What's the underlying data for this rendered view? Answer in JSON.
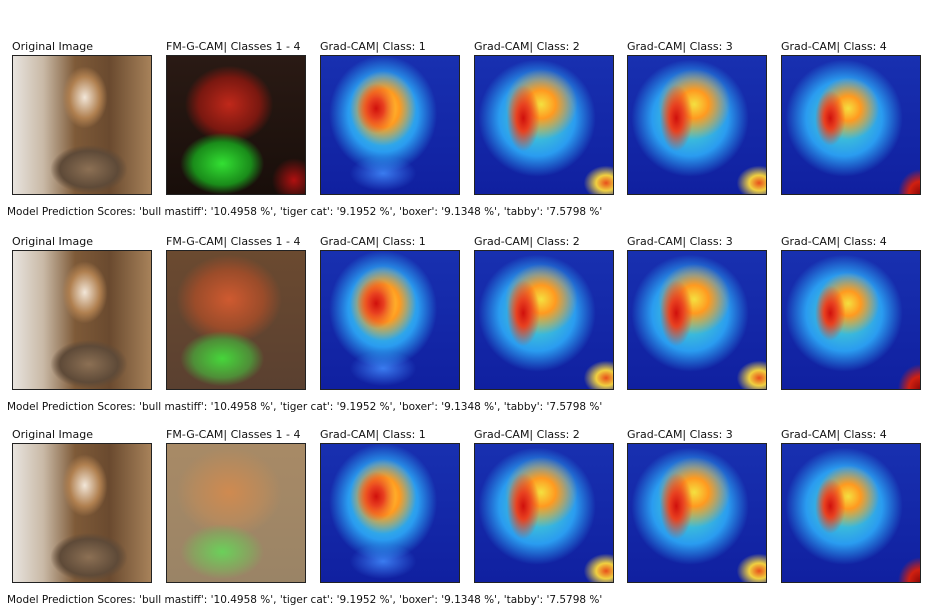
{
  "rows": [
    {
      "panels": [
        "Original Image",
        "FM-G-CAM| Classes 1 - 4",
        "Grad-CAM| Class: 1",
        "Grad-CAM| Class: 2",
        "Grad-CAM| Class: 3",
        "Grad-CAM| Class: 4"
      ],
      "caption": "Model Prediction Scores: 'bull mastiff': '10.4958 %', 'tiger cat': '9.1952 %', 'boxer': '9.1348 %', 'tabby': '7.5798 %'"
    },
    {
      "panels": [
        "Original Image",
        "FM-G-CAM| Classes 1 - 4",
        "Grad-CAM| Class: 1",
        "Grad-CAM| Class: 2",
        "Grad-CAM| Class: 3",
        "Grad-CAM| Class: 4"
      ],
      "caption": "Model Prediction Scores: 'bull mastiff': '10.4958 %', 'tiger cat': '9.1952 %', 'boxer': '9.1348 %', 'tabby': '7.5798 %'"
    },
    {
      "panels": [
        "Original Image",
        "FM-G-CAM| Classes 1 - 4",
        "Grad-CAM| Class: 1",
        "Grad-CAM| Class: 2",
        "Grad-CAM| Class: 3",
        "Grad-CAM| Class: 4"
      ],
      "caption": "Model Prediction Scores: 'bull mastiff': '10.4958 %', 'tiger cat': '9.1952 %', 'boxer': '9.1348 %', 'tabby': '7.5798 %'"
    }
  ]
}
